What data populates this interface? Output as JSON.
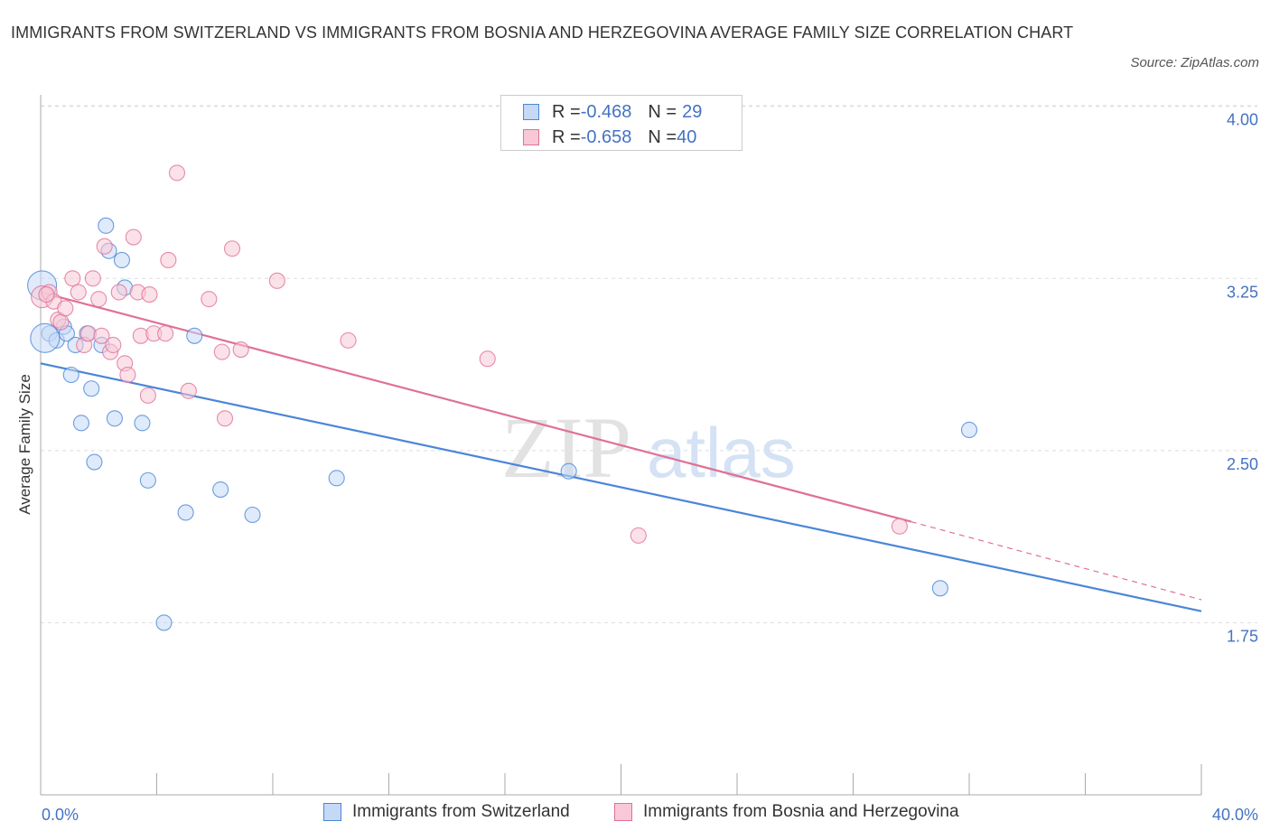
{
  "title": "IMMIGRANTS FROM SWITZERLAND VS IMMIGRANTS FROM BOSNIA AND HERZEGOVINA AVERAGE FAMILY SIZE CORRELATION CHART",
  "source": "Source: ZipAtlas.com",
  "watermark": {
    "zip": "ZIP",
    "atlas": "atlas"
  },
  "colors": {
    "blue": "#4a86d8",
    "blue_fill": "#c5d8f5",
    "pink": "#e07098",
    "pink_fill": "#f8c8d6",
    "axis_text": "#4472c4"
  },
  "legend": {
    "rows": [
      {
        "r_label": "R = ",
        "r_value": "-0.468",
        "n_label": "N = ",
        "n_value": "29"
      },
      {
        "r_label": "R = ",
        "r_value": "-0.658",
        "n_label": "N = ",
        "n_value": "40"
      }
    ]
  },
  "chart_data": {
    "type": "scatter",
    "title": "IMMIGRANTS FROM SWITZERLAND VS IMMIGRANTS FROM BOSNIA AND HERZEGOVINA AVERAGE FAMILY SIZE CORRELATION CHART",
    "xlabel": "",
    "ylabel": "Average Family Size",
    "xlim": [
      0,
      40
    ],
    "ylim": [
      1.0,
      4.05
    ],
    "x_tick_labels": [
      "0.0%",
      "40.0%"
    ],
    "y_ticks": [
      1.75,
      2.5,
      3.25,
      4.0
    ],
    "y_tick_labels": [
      "1.75",
      "2.50",
      "3.25",
      "4.00"
    ],
    "grid": "horizontal dashed",
    "legend_position": "bottom",
    "series": [
      {
        "name": "Immigrants from Switzerland",
        "color": "#4a86d8",
        "trend": {
          "x": [
            0,
            40
          ],
          "y": [
            2.88,
            1.8
          ]
        },
        "points": [
          [
            0.05,
            3.22
          ],
          [
            0.3,
            3.01
          ],
          [
            0.55,
            2.98
          ],
          [
            0.8,
            3.04
          ],
          [
            0.9,
            3.01
          ],
          [
            1.05,
            2.83
          ],
          [
            1.2,
            2.96
          ],
          [
            1.4,
            2.62
          ],
          [
            1.6,
            3.01
          ],
          [
            1.75,
            2.77
          ],
          [
            1.85,
            2.45
          ],
          [
            2.1,
            2.96
          ],
          [
            2.25,
            3.48
          ],
          [
            2.35,
            3.37
          ],
          [
            2.55,
            2.64
          ],
          [
            2.8,
            3.33
          ],
          [
            2.9,
            3.21
          ],
          [
            3.5,
            2.62
          ],
          [
            3.7,
            2.37
          ],
          [
            4.25,
            1.75
          ],
          [
            5.0,
            2.23
          ],
          [
            5.3,
            3.0
          ],
          [
            6.2,
            2.33
          ],
          [
            7.3,
            2.22
          ],
          [
            10.2,
            2.38
          ],
          [
            18.2,
            2.41
          ],
          [
            31.0,
            1.9
          ],
          [
            32.0,
            2.59
          ],
          [
            0.15,
            2.99
          ]
        ]
      },
      {
        "name": "Immigrants from Bosnia and Herzegovina",
        "color": "#e07098",
        "trend": {
          "x": [
            0,
            30
          ],
          "y": [
            3.19,
            2.19
          ]
        },
        "trend_extension": {
          "x": [
            30,
            40
          ],
          "y": [
            2.19,
            1.85
          ]
        },
        "points": [
          [
            0.05,
            3.17
          ],
          [
            0.3,
            3.19
          ],
          [
            0.45,
            3.15
          ],
          [
            0.6,
            3.07
          ],
          [
            0.7,
            3.06
          ],
          [
            0.85,
            3.12
          ],
          [
            1.1,
            3.25
          ],
          [
            1.3,
            3.19
          ],
          [
            1.5,
            2.96
          ],
          [
            1.65,
            3.01
          ],
          [
            1.8,
            3.25
          ],
          [
            2.0,
            3.16
          ],
          [
            2.1,
            3.0
          ],
          [
            2.2,
            3.39
          ],
          [
            2.4,
            2.93
          ],
          [
            2.5,
            2.96
          ],
          [
            2.7,
            3.19
          ],
          [
            2.9,
            2.88
          ],
          [
            3.0,
            2.83
          ],
          [
            3.2,
            3.43
          ],
          [
            3.35,
            3.19
          ],
          [
            3.45,
            3.0
          ],
          [
            3.7,
            2.74
          ],
          [
            3.75,
            3.18
          ],
          [
            3.9,
            3.01
          ],
          [
            4.3,
            3.01
          ],
          [
            4.4,
            3.33
          ],
          [
            4.7,
            3.71
          ],
          [
            5.1,
            2.76
          ],
          [
            5.8,
            3.16
          ],
          [
            6.25,
            2.93
          ],
          [
            6.35,
            2.64
          ],
          [
            6.6,
            3.38
          ],
          [
            6.9,
            2.94
          ],
          [
            8.15,
            3.24
          ],
          [
            10.6,
            2.98
          ],
          [
            15.4,
            2.9
          ],
          [
            20.6,
            2.13
          ],
          [
            29.6,
            2.17
          ],
          [
            0.2,
            3.18
          ]
        ]
      }
    ]
  }
}
